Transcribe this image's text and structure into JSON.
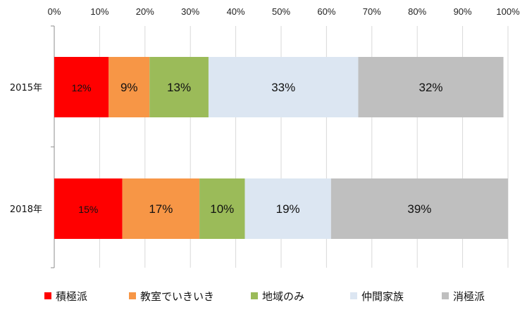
{
  "chart_data": {
    "type": "bar",
    "orientation": "horizontal",
    "stacked": "percent",
    "categories": [
      "2015年",
      "2018年"
    ],
    "x_ticks": [
      "0%",
      "10%",
      "20%",
      "30%",
      "40%",
      "50%",
      "60%",
      "70%",
      "80%",
      "90%",
      "100%"
    ],
    "xlim": [
      0,
      100
    ],
    "grid": true,
    "legend_position": "bottom",
    "series": [
      {
        "name": "積極派",
        "color": "#ff0000",
        "values": [
          12,
          15
        ],
        "labels": [
          "12%",
          "15%"
        ]
      },
      {
        "name": "教室でいきいき",
        "color": "#f79646",
        "values": [
          9,
          17
        ],
        "labels": [
          "9%",
          "17%"
        ]
      },
      {
        "name": "地域のみ",
        "color": "#9bbb59",
        "values": [
          13,
          10
        ],
        "labels": [
          "13%",
          "10%"
        ]
      },
      {
        "name": "仲間家族",
        "color": "#dce6f2",
        "values": [
          33,
          19
        ],
        "labels": [
          "33%",
          "19%"
        ]
      },
      {
        "name": "消極派",
        "color": "#bfbfbf",
        "values": [
          32,
          39
        ],
        "labels": [
          "32%",
          "39%"
        ]
      }
    ]
  }
}
